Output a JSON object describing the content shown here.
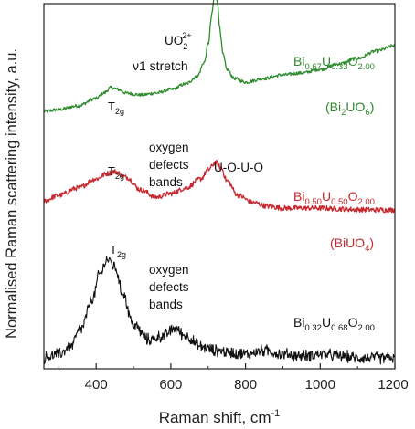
{
  "chart_data": {
    "type": "line",
    "title": "",
    "xlabel_main": "Raman shift, cm",
    "xlabel_sup": "-1",
    "ylabel": "Normalised Raman scattering intensity, a.u.",
    "xlim": [
      260,
      1200
    ],
    "ylim": [
      0,
      10
    ],
    "y_scale": "arbitrary, vertically offset traces",
    "grid": false,
    "legend": "none (series labelled on the plot)",
    "x_ticks": [
      400,
      600,
      800,
      1000,
      1200
    ],
    "series": [
      {
        "name": "Bi0.67U0.33O2.00 (Bi2UO6)",
        "color": "#2e8b2e",
        "noise": 0.045,
        "x": [
          260,
          300,
          350,
          400,
          420,
          440,
          460,
          480,
          520,
          560,
          600,
          640,
          670,
          690,
          700,
          710,
          715,
          720,
          725,
          730,
          740,
          750,
          770,
          800,
          850,
          900,
          950,
          1000,
          1050,
          1100,
          1150,
          1200
        ],
        "y": [
          7.05,
          7.1,
          7.2,
          7.4,
          7.55,
          7.7,
          7.65,
          7.55,
          7.5,
          7.55,
          7.65,
          7.8,
          8.0,
          8.4,
          8.9,
          9.7,
          10.1,
          10.3,
          10.05,
          9.4,
          8.6,
          8.2,
          7.95,
          7.85,
          7.95,
          8.05,
          8.1,
          8.2,
          8.35,
          8.5,
          8.7,
          8.85
        ]
      },
      {
        "name": "Bi0.50U0.50O2.00 (BiUO4)",
        "color": "#c8282d",
        "noise": 0.07,
        "x": [
          260,
          300,
          350,
          400,
          430,
          450,
          480,
          520,
          560,
          600,
          640,
          680,
          700,
          720,
          735,
          750,
          780,
          820,
          860,
          900,
          950,
          1000,
          1050,
          1100,
          1150,
          1200
        ],
        "y": [
          4.6,
          4.75,
          4.95,
          5.2,
          5.35,
          5.4,
          5.25,
          4.9,
          4.7,
          4.8,
          4.95,
          5.2,
          5.45,
          5.65,
          5.5,
          5.15,
          4.75,
          4.55,
          4.45,
          4.4,
          4.4,
          4.4,
          4.38,
          4.36,
          4.35,
          4.35
        ]
      },
      {
        "name": "Bi0.32U0.68O2.00",
        "color": "#111111",
        "noise": 0.14,
        "x": [
          260,
          300,
          330,
          360,
          390,
          410,
          430,
          450,
          470,
          500,
          540,
          580,
          610,
          640,
          680,
          720,
          760,
          800,
          850,
          900,
          950,
          1000,
          1050,
          1100,
          1150,
          1200
        ],
        "y": [
          0.3,
          0.4,
          0.6,
          1.1,
          1.9,
          2.6,
          3.0,
          2.8,
          2.1,
          1.2,
          0.8,
          0.9,
          1.1,
          0.9,
          0.6,
          0.5,
          0.45,
          0.4,
          0.5,
          0.4,
          0.35,
          0.4,
          0.35,
          0.3,
          0.3,
          0.3
        ]
      }
    ],
    "annotations": {
      "green_t2g": "T",
      "green_t2g_sub": "2g",
      "uo2_main": "UO",
      "uo2_sub": "2",
      "uo2_sup": "2+",
      "stretch": "ν1 stretch",
      "red_t2g": "T",
      "red_t2g_sub": "2g",
      "red_defects_1": "oxygen",
      "red_defects_2": "defects",
      "red_defects_3": "bands",
      "uouo": "U-O-U-O",
      "black_t2g": "T",
      "black_t2g_sub": "2g",
      "black_defects_1": "oxygen",
      "black_defects_2": "defects",
      "black_defects_3": "bands"
    },
    "series_labels": {
      "green": {
        "bi": "Bi",
        "bi_sub": "0.67",
        "u": "U",
        "u_sub": "0.33",
        "o": "O",
        "o_sub": "2.00",
        "phase_open": "(Bi",
        "phase_sub": "2",
        "phase_rest": "UO",
        "phase_sub2": "6",
        "phase_close": ")"
      },
      "red": {
        "bi": "Bi",
        "bi_sub": "0.50",
        "u": "U",
        "u_sub": "0.50",
        "o": "O",
        "o_sub": "2.00",
        "phase_open": "(BiUO",
        "phase_sub": "4",
        "phase_close": ")"
      },
      "black": {
        "bi": "Bi",
        "bi_sub": "0.32",
        "u": "U",
        "u_sub": "0.68",
        "o": "O",
        "o_sub": "2.00"
      }
    }
  }
}
